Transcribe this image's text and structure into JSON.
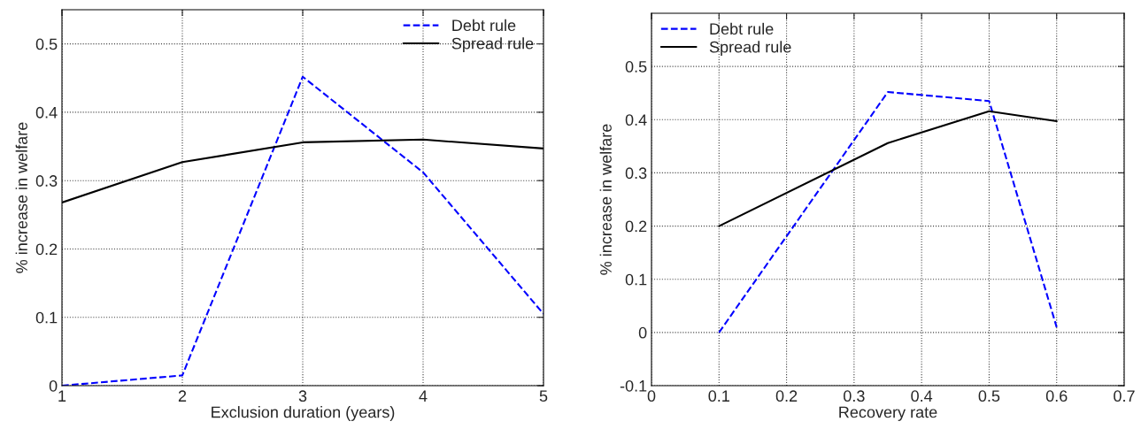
{
  "chart_data": [
    {
      "type": "line",
      "xlabel": "Exclusion duration (years)",
      "ylabel": "% increase in welfare",
      "x": [
        1,
        2,
        3,
        4,
        5
      ],
      "xlim": [
        1,
        5
      ],
      "xticks": [
        1,
        2,
        3,
        4,
        5
      ],
      "ylim": [
        0,
        0.55
      ],
      "yticks": [
        0,
        0.1,
        0.2,
        0.3,
        0.4,
        0.5
      ],
      "grid": true,
      "legend": "top right",
      "series": [
        {
          "name": "Debt rule",
          "color": "#0000ff",
          "line_style": "dashed",
          "values": [
            0,
            0.015,
            0.452,
            0.312,
            0.105
          ]
        },
        {
          "name": "Spread rule",
          "color": "#000000",
          "line_style": "solid",
          "values": [
            0.268,
            0.327,
            0.356,
            0.36,
            0.347
          ]
        }
      ]
    },
    {
      "type": "line",
      "xlabel": "Recovery rate",
      "ylabel": "% increase in welfare",
      "x": [
        0.1,
        0.35,
        0.5,
        0.6
      ],
      "xlim": [
        0,
        0.7
      ],
      "xticks": [
        0,
        0.1,
        0.2,
        0.3,
        0.4,
        0.5,
        0.6,
        0.7
      ],
      "ylim": [
        -0.1,
        0.6
      ],
      "yticks": [
        -0.1,
        0,
        0.1,
        0.2,
        0.3,
        0.4,
        0.5
      ],
      "grid": true,
      "legend": "top left",
      "series": [
        {
          "name": "Debt rule",
          "color": "#0000ff",
          "line_style": "dashed",
          "values": [
            0,
            0.452,
            0.435,
            0.01
          ]
        },
        {
          "name": "Spread rule",
          "color": "#000000",
          "line_style": "solid",
          "values": [
            0.2,
            0.356,
            0.416,
            0.397
          ]
        }
      ]
    }
  ]
}
